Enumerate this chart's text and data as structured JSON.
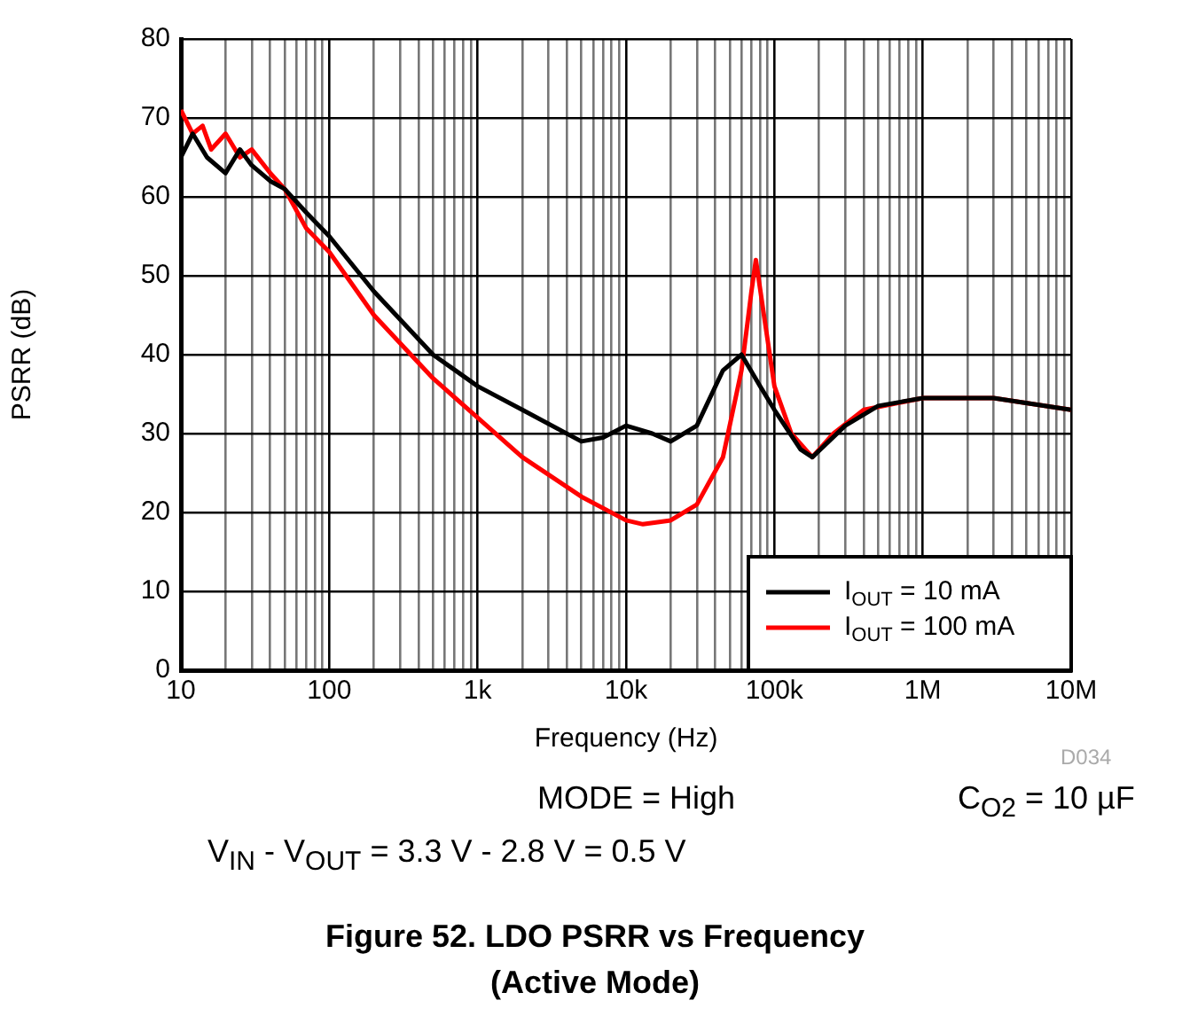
{
  "chart_data": {
    "type": "line",
    "title": "Figure 52. LDO PSRR vs Frequency\n(Active Mode)",
    "xlabel": "Frequency (Hz)",
    "ylabel": "PSRR (dB)",
    "annotations": [
      "D034",
      "MODE = High",
      "C$_{O2}$ = 10 µF",
      "V$_{IN}$ - V$_{OUT}$ = 3.3 V - 2.8 V = 0.5 V"
    ],
    "log": "x",
    "grid": true,
    "legend": "bottom right",
    "marker": "none",
    "line_style": "solid",
    "xlim": [
      10,
      10000000
    ],
    "ylim": [
      0,
      80
    ],
    "yticks": [
      0,
      10,
      20,
      30,
      40,
      50,
      60,
      70,
      80
    ],
    "xticks": [
      {
        "value": 10,
        "label": "10"
      },
      {
        "value": 20,
        "label": null
      },
      {
        "value": 30,
        "label": null
      },
      {
        "value": 40,
        "label": null
      },
      {
        "value": 50,
        "label": null
      },
      {
        "value": 60,
        "label": null
      },
      {
        "value": 70,
        "label": null
      },
      {
        "value": 80,
        "label": null
      },
      {
        "value": 90,
        "label": null
      },
      {
        "value": 100,
        "label": "100"
      },
      {
        "value": 200,
        "label": null
      },
      {
        "value": 300,
        "label": null
      },
      {
        "value": 400,
        "label": null
      },
      {
        "value": 500,
        "label": null
      },
      {
        "value": 600,
        "label": null
      },
      {
        "value": 700,
        "label": null
      },
      {
        "value": 800,
        "label": null
      },
      {
        "value": 900,
        "label": null
      },
      {
        "value": 1000,
        "label": "1k"
      },
      {
        "value": 2000,
        "label": null
      },
      {
        "value": 3000,
        "label": null
      },
      {
        "value": 4000,
        "label": null
      },
      {
        "value": 5000,
        "label": null
      },
      {
        "value": 6000,
        "label": null
      },
      {
        "value": 7000,
        "label": null
      },
      {
        "value": 8000,
        "label": null
      },
      {
        "value": 9000,
        "label": null
      },
      {
        "value": 10000,
        "label": "10k"
      },
      {
        "value": 20000,
        "label": null
      },
      {
        "value": 30000,
        "label": null
      },
      {
        "value": 40000,
        "label": null
      },
      {
        "value": 50000,
        "label": null
      },
      {
        "value": 60000,
        "label": null
      },
      {
        "value": 70000,
        "label": null
      },
      {
        "value": 80000,
        "label": null
      },
      {
        "value": 90000,
        "label": null
      },
      {
        "value": 100000,
        "label": "100k"
      },
      {
        "value": 200000,
        "label": null
      },
      {
        "value": 300000,
        "label": null
      },
      {
        "value": 400000,
        "label": null
      },
      {
        "value": 500000,
        "label": null
      },
      {
        "value": 600000,
        "label": null
      },
      {
        "value": 700000,
        "label": null
      },
      {
        "value": 800000,
        "label": null
      },
      {
        "value": 900000,
        "label": null
      },
      {
        "value": 1000000,
        "label": "1M"
      },
      {
        "value": 2000000,
        "label": null
      },
      {
        "value": 3000000,
        "label": null
      },
      {
        "value": 4000000,
        "label": null
      },
      {
        "value": 5000000,
        "label": null
      },
      {
        "value": 6000000,
        "label": null
      },
      {
        "value": 7000000,
        "label": null
      },
      {
        "value": 8000000,
        "label": null
      },
      {
        "value": 9000000,
        "label": null
      },
      {
        "value": 10000000,
        "label": "10M"
      }
    ],
    "series": [
      {
        "name": "I$_{OUT}$ = 10 mA",
        "color": "#000000",
        "x": [
          10,
          12,
          15,
          20,
          25,
          30,
          40,
          50,
          70,
          100,
          200,
          500,
          1000,
          2000,
          5000,
          7000,
          10000,
          15000,
          20000,
          30000,
          45000,
          60000,
          80000,
          100000,
          150000,
          180000,
          300000,
          500000,
          1000000,
          3000000,
          10000000
        ],
        "values": [
          65,
          68,
          65,
          63,
          66,
          64,
          62,
          61,
          58,
          55,
          48,
          40,
          36,
          33,
          29,
          29.5,
          31,
          30,
          29,
          31,
          38,
          40,
          36,
          33,
          28,
          27,
          31,
          33.5,
          34.5,
          34.5,
          33
        ]
      },
      {
        "name": "I$_{OUT}$ = 100 mA",
        "color": "#ff0000",
        "x": [
          10,
          12,
          14,
          16,
          20,
          25,
          30,
          40,
          50,
          70,
          100,
          200,
          500,
          1000,
          2000,
          5000,
          10000,
          13000,
          20000,
          30000,
          45000,
          60000,
          70000,
          75000,
          85000,
          100000,
          130000,
          180000,
          250000,
          400000,
          1000000,
          3000000,
          10000000
        ],
        "values": [
          71,
          68,
          69,
          66,
          68,
          65,
          66,
          63,
          61,
          56,
          53,
          45,
          37,
          32,
          27,
          22,
          19,
          18.5,
          19,
          21,
          27,
          38,
          48,
          52,
          45,
          36,
          30,
          27,
          30,
          33,
          34.5,
          34.5,
          33
        ]
      }
    ]
  }
}
